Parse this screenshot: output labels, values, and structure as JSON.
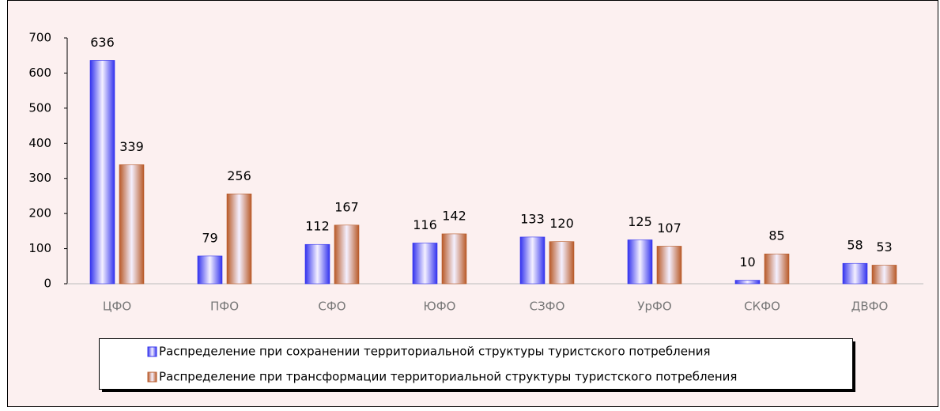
{
  "chart_data": {
    "type": "bar",
    "categories": [
      "ЦФО",
      "ПФО",
      "СФО",
      "ЮФО",
      "СЗФО",
      "УрФО",
      "СКФО",
      "ДВФО"
    ],
    "series": [
      {
        "name": "Распределение при сохранении территориальной структуры туристского потребления",
        "color": "#3333ee",
        "values": [
          636,
          79,
          112,
          116,
          133,
          125,
          10,
          58
        ]
      },
      {
        "name": "Распределение при трансформации территориальной структуры туристского потребления",
        "color": "#b85a28",
        "values": [
          339,
          256,
          167,
          142,
          120,
          107,
          85,
          53
        ]
      }
    ],
    "ylim": [
      0,
      700
    ],
    "yticks": [
      0,
      100,
      200,
      300,
      400,
      500,
      600,
      700
    ],
    "legend": "bottom"
  }
}
